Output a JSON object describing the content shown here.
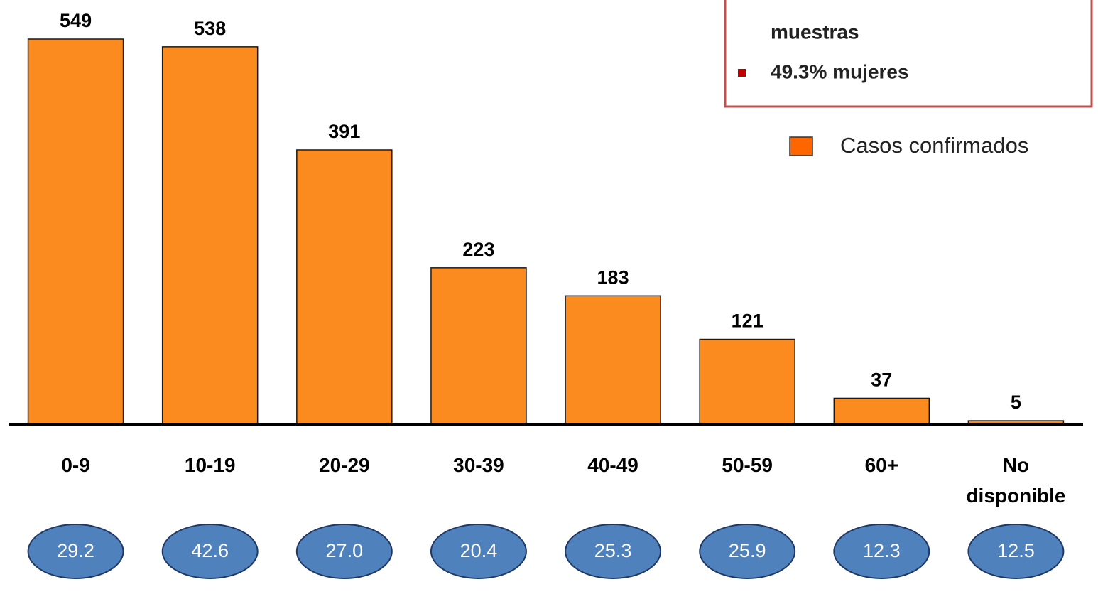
{
  "chart_data": {
    "type": "bar",
    "categories": [
      "0-9",
      "10-19",
      "20-29",
      "30-39",
      "40-49",
      "50-59",
      "60+",
      "No disponible"
    ],
    "series": [
      {
        "name": "Casos confirmados",
        "color": "#fc8b1f",
        "values": [
          549,
          538,
          391,
          223,
          183,
          121,
          37,
          5
        ]
      }
    ],
    "legend_color": "#ff6600",
    "legend_position": "upper right",
    "ellipse_values": [
      29.2,
      42.6,
      27.0,
      20.4,
      25.3,
      25.9,
      12.3,
      12.5
    ],
    "ellipse_labels": [
      "29.2",
      "42.6",
      "27.0",
      "20.4",
      "25.3",
      "25.9",
      "12.3",
      "12.5"
    ],
    "ellipse_color": "#4f81bd",
    "annotations": [
      {
        "text": "muestras",
        "bullet": false
      },
      {
        "text": "49.3% mujeres",
        "bullet": true
      }
    ]
  }
}
